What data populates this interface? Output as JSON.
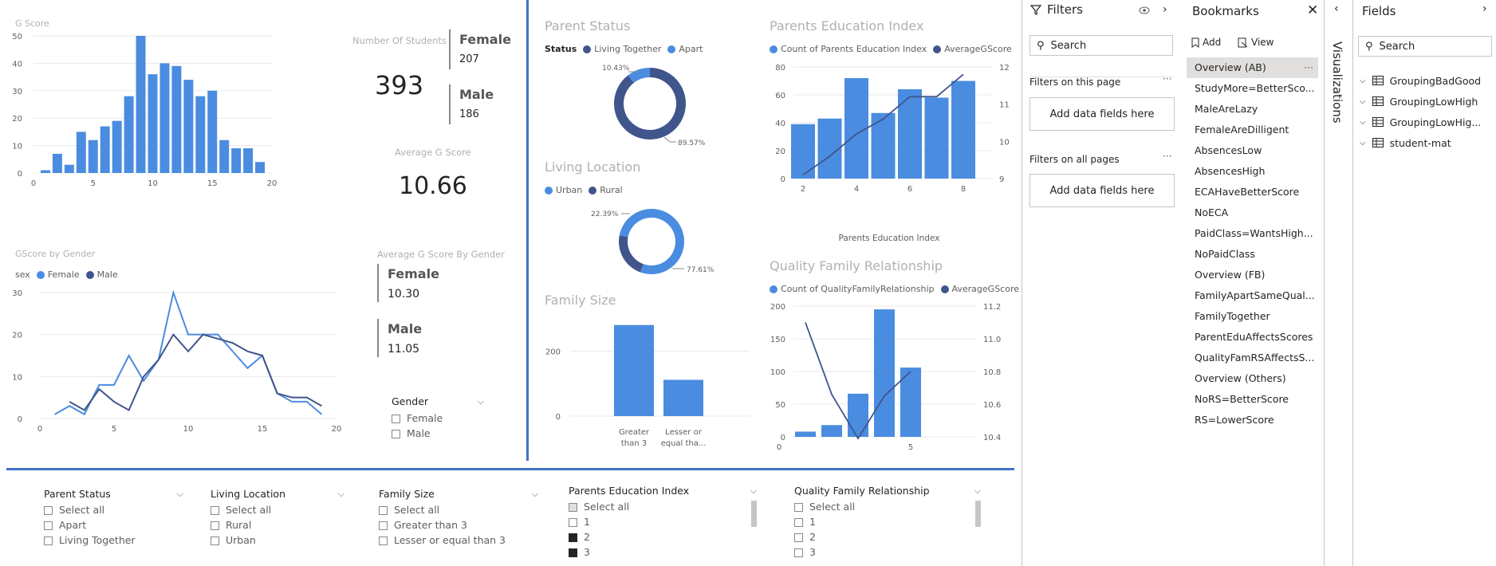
{
  "colors": {
    "female": "#4a8ce0",
    "male": "#40558c",
    "bar": "#4a8ce0",
    "accent": "#4472c4"
  },
  "gscore": {
    "title": "G Score",
    "yticks": [
      "50",
      "40",
      "30",
      "20",
      "10",
      "0"
    ],
    "xticks": [
      "0",
      "5",
      "10",
      "15",
      "20"
    ]
  },
  "students": {
    "label": "Number Of Students",
    "total": "393",
    "female_label": "Female",
    "female_count": "207",
    "male_label": "Male",
    "male_count": "186"
  },
  "avg_g": {
    "label": "Average G Score",
    "value": "10.66"
  },
  "gscore_gender": {
    "title": "GScore by Gender",
    "legend_title": "sex",
    "female": "Female",
    "male": "Male",
    "yticks": [
      "30",
      "20",
      "10",
      "0"
    ],
    "xticks": [
      "0",
      "5",
      "10",
      "15",
      "20"
    ]
  },
  "avg_by_gender": {
    "label": "Average G Score By Gender",
    "female_label": "Female",
    "female_value": "10.30",
    "male_label": "Male",
    "male_value": "11.05"
  },
  "gender_slicer": {
    "title": "Gender",
    "items": [
      "Female",
      "Male"
    ]
  },
  "parent_status": {
    "title": "Parent Status",
    "legend_title": "Status",
    "legend": [
      "Living Together",
      "Apart"
    ],
    "label_small": "10.43%",
    "label_big": "89.57%"
  },
  "living": {
    "title": "Living Location",
    "legend": [
      "Urban",
      "Rural"
    ],
    "label_small": "22.39%",
    "label_big": "77.61%"
  },
  "family": {
    "title": "Family Size",
    "yticks": [
      "200",
      "0"
    ],
    "cat1_a": "Greater",
    "cat1_b": "than 3",
    "cat2_a": "Lesser or",
    "cat2_b": "equal tha..."
  },
  "pei": {
    "title": "Parents Education Index",
    "legend": [
      "Count of Parents Education Index",
      "AverageGScore"
    ],
    "yticks": [
      "80",
      "60",
      "40",
      "20",
      "0"
    ],
    "y2ticks": [
      "12",
      "11",
      "10",
      "9"
    ],
    "xticks": [
      "2",
      "4",
      "6",
      "8"
    ],
    "xlabel": "Parents Education Index"
  },
  "qfr": {
    "title": "Quality Family Relationship",
    "legend": [
      "Count of QualityFamilyRelationship",
      "AverageGScore"
    ],
    "yticks": [
      "200",
      "150",
      "100",
      "50",
      "0"
    ],
    "y2ticks": [
      "11.2",
      "11.0",
      "10.8",
      "10.6",
      "10.4"
    ],
    "xticks": [
      "0",
      "5"
    ]
  },
  "slicers": [
    {
      "title": "Parent Status",
      "items": [
        "Select all",
        "Apart",
        "Living Together"
      ]
    },
    {
      "title": "Living Location",
      "items": [
        "Select all",
        "Rural",
        "Urban"
      ]
    },
    {
      "title": "Family Size",
      "items": [
        "Select all",
        "Greater than 3",
        "Lesser or equal than 3"
      ]
    },
    {
      "title": "Parents Education Index",
      "items": [
        "Select all",
        "1",
        "2",
        "3"
      ]
    },
    {
      "title": "Quality Family Relationship",
      "items": [
        "Select all",
        "1",
        "2",
        "3"
      ]
    }
  ],
  "filters": {
    "title": "Filters",
    "search": "Search",
    "on_page": "Filters on this page",
    "on_all": "Filters on all pages",
    "add": "Add data fields here"
  },
  "bookmarks": {
    "title": "Bookmarks",
    "add": "Add",
    "view": "View",
    "items": [
      "Overview (AB)",
      "StudyMore=BetterSco...",
      "MaleAreLazy",
      "FemaleAreDilligent",
      "AbsencesLow",
      "AbsencesHigh",
      "ECAHaveBetterScore",
      "NoECA",
      "PaidClass=WantsHigh...",
      "NoPaidClass",
      "Overview (FB)",
      "FamilyApartSameQual...",
      "FamilyTogether",
      "ParentEduAffectsScores",
      "QualityFamRSAffectsS...",
      "Overview (Others)",
      "NoRS=BetterScore",
      "RS=LowerScore"
    ]
  },
  "visualizations": {
    "label": "Visualizations"
  },
  "fields": {
    "title": "Fields",
    "search": "Search",
    "items": [
      "GroupingBadGood",
      "GroupingLowHigh",
      "GroupingLowHig...",
      "student-mat"
    ]
  },
  "chart_data": [
    {
      "type": "bar",
      "title": "G Score",
      "x": [
        1,
        2,
        3,
        4,
        5,
        6,
        7,
        8,
        9,
        10,
        11,
        12,
        13,
        14,
        15,
        16,
        17,
        18,
        19
      ],
      "values": [
        1,
        7,
        3,
        15,
        12,
        17,
        19,
        28,
        50,
        36,
        40,
        39,
        34,
        28,
        30,
        12,
        9,
        9,
        4
      ],
      "ylim": [
        0,
        50
      ],
      "xlim": [
        0,
        20
      ]
    },
    {
      "type": "line",
      "title": "GScore by Gender",
      "x": [
        1,
        2,
        3,
        4,
        5,
        6,
        7,
        8,
        9,
        10,
        11,
        12,
        13,
        14,
        15,
        16,
        17,
        18,
        19
      ],
      "series": [
        {
          "name": "Female",
          "values": [
            1,
            3,
            1,
            8,
            8,
            15,
            9,
            14,
            30,
            20,
            20,
            20,
            16,
            12,
            15,
            6,
            4,
            4,
            1
          ]
        },
        {
          "name": "Male",
          "values": [
            null,
            4,
            2,
            7,
            4,
            2,
            10,
            14,
            20,
            16,
            20,
            19,
            18,
            16,
            15,
            6,
            5,
            5,
            3
          ]
        }
      ],
      "ylim": [
        0,
        30
      ],
      "xlim": [
        0,
        20
      ]
    },
    {
      "type": "pie",
      "title": "Parent Status",
      "categories": [
        "Living Together",
        "Apart"
      ],
      "values": [
        89.57,
        10.43
      ]
    },
    {
      "type": "pie",
      "title": "Living Location",
      "categories": [
        "Urban",
        "Rural"
      ],
      "values": [
        77.61,
        22.39
      ]
    },
    {
      "type": "bar",
      "title": "Family Size",
      "categories": [
        "Greater than 3",
        "Lesser or equal than 3"
      ],
      "values": [
        281,
        112
      ],
      "ylim": [
        0,
        300
      ]
    },
    {
      "type": "bar",
      "title": "Parents Education Index",
      "x": [
        2,
        3,
        4,
        5,
        6,
        7,
        8
      ],
      "series": [
        {
          "name": "Count of Parents Education Index",
          "values": [
            39,
            43,
            72,
            47,
            64,
            58,
            70
          ]
        },
        {
          "name": "AverageGScore",
          "values": [
            9.1,
            9.6,
            10.2,
            10.6,
            11.2,
            11.2,
            11.8
          ]
        }
      ],
      "ylim": [
        0,
        80
      ],
      "y2lim": [
        9,
        12
      ],
      "xlabel": "Parents Education Index"
    },
    {
      "type": "bar",
      "title": "Quality Family Relationship",
      "x": [
        1,
        2,
        3,
        4,
        5
      ],
      "series": [
        {
          "name": "Count of QualityFamilyRelationship",
          "values": [
            8,
            18,
            66,
            195,
            106
          ]
        },
        {
          "name": "AverageGScore",
          "values": [
            11.1,
            10.66,
            10.39,
            10.65,
            10.8
          ]
        }
      ],
      "ylim": [
        0,
        200
      ],
      "y2lim": [
        10.4,
        11.2
      ]
    }
  ]
}
